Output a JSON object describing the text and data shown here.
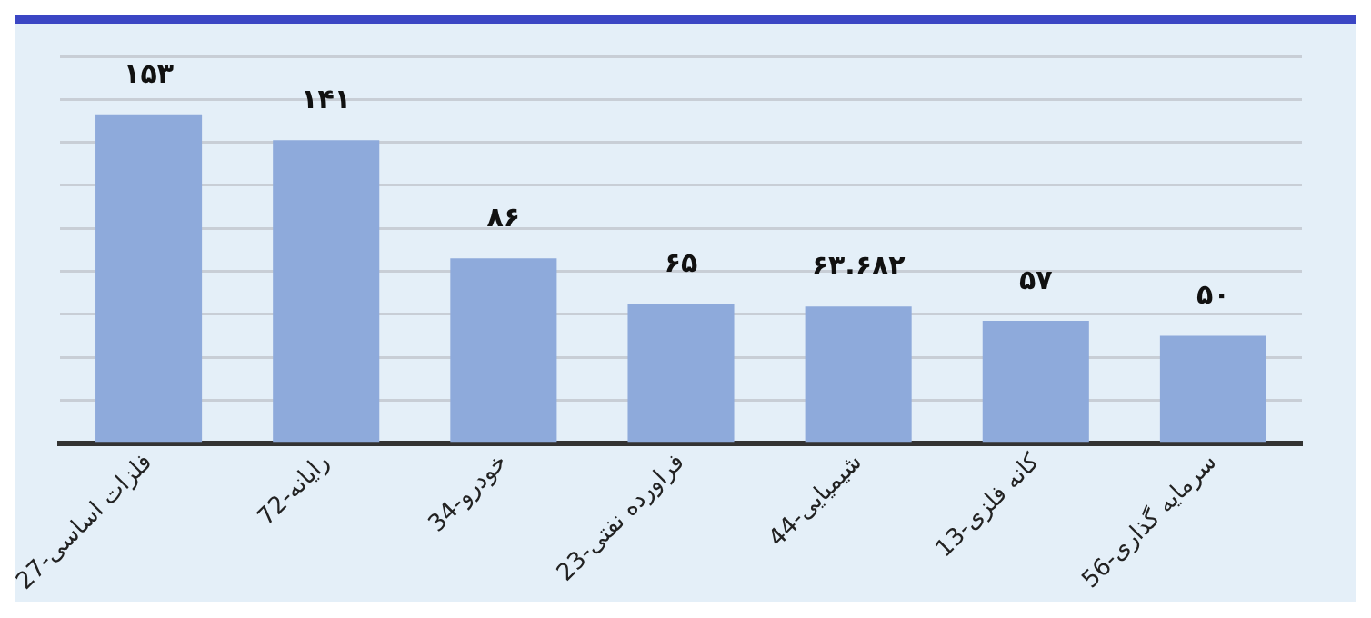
{
  "chart_data": {
    "type": "bar",
    "categories": [
      "27-فلزات اساسی",
      "72-رایانه",
      "34-خودرو",
      "23-فراورده نفتی",
      "44-شیمیایی",
      "13-کانه فلزی",
      "56-سرمایه گذاری"
    ],
    "values": [
      153,
      141,
      86,
      65,
      63.682,
      57,
      50
    ],
    "value_labels": [
      "۱۵۳",
      "۱۴۱",
      "۸۶",
      "۶۵",
      "۶۳.۶۸۲",
      "۵۷",
      "۵۰"
    ],
    "color": "#8eaadb",
    "ylim": [
      0,
      180
    ],
    "yticks": [
      {
        "value": 0,
        "label": null
      },
      {
        "value": 20,
        "label": null
      },
      {
        "value": 40,
        "label": null
      },
      {
        "value": 60,
        "label": null
      },
      {
        "value": 80,
        "label": null
      },
      {
        "value": 100,
        "label": null
      },
      {
        "value": 120,
        "label": null
      },
      {
        "value": 140,
        "label": null
      },
      {
        "value": 160,
        "label": null
      },
      {
        "value": 180,
        "label": null
      }
    ],
    "tick_labels": "x",
    "grid": "y",
    "legend": false
  }
}
